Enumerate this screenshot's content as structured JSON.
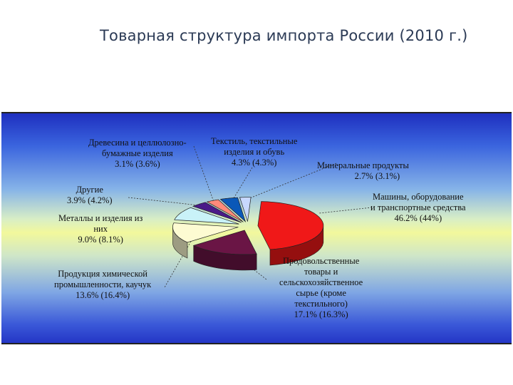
{
  "slide": {
    "title": "Товарная структура импорта России (2010 г.)"
  },
  "chart_data": {
    "type": "pie",
    "title": "Товарная структура импорта России (2010 г.)",
    "unit": "%",
    "slices": [
      {
        "label": "Машины, оборудование и транспортные средства",
        "value": 46.2,
        "comparison": 44,
        "color": "#f01818"
      },
      {
        "label": "Продовольственные товары и сельскохозяйственное сырье (кроме текстильного)",
        "value": 17.1,
        "comparison": 16.3,
        "color": "#6a1545"
      },
      {
        "label": "Продукция химической промышленности, каучук",
        "value": 13.6,
        "comparison": 16.4,
        "color": "#fdfbd2"
      },
      {
        "label": "Металлы и изделия из них",
        "value": 9.0,
        "comparison": 8.1,
        "color": "#c9f2f8"
      },
      {
        "label": "Другие",
        "value": 3.9,
        "comparison": 4.2,
        "color": "#4a1a88"
      },
      {
        "label": "Древесина и целлюлозно-бумажные изделия",
        "value": 3.1,
        "comparison": 3.6,
        "color": "#ff8a7a"
      },
      {
        "label": "Текстиль, текстильные изделия и обувь",
        "value": 4.3,
        "comparison": 4.3,
        "color": "#0a58b8"
      },
      {
        "label": "Минеральные продукты",
        "value": 2.7,
        "comparison": 3.1,
        "color": "#c8d8ff"
      }
    ],
    "labels": {
      "machines": {
        "lines": [
          "Машины, оборудование",
          "и транспортные средства"
        ],
        "values": "46.2%  (44%)"
      },
      "food": {
        "lines": [
          "Продовольственные",
          "товары и",
          "сельскохозяйственное",
          "сырье (кроме",
          "текстильного)"
        ],
        "values": "17.1%  (16.3%)"
      },
      "chemical": {
        "lines": [
          "Продукция химической",
          "промышленности, каучук"
        ],
        "values": "13.6%  (16.4%)"
      },
      "metals": {
        "lines": [
          "Металлы и изделия из",
          "них"
        ],
        "values": "9.0%  (8.1%)"
      },
      "other": {
        "lines": [
          "Другие"
        ],
        "values": "3.9%  (4.2%)"
      },
      "wood": {
        "lines": [
          "Древесина и целлюлозно-",
          "бумажные изделия"
        ],
        "values": "3.1%  (3.6%)"
      },
      "textile": {
        "lines": [
          "Текстиль, текстильные",
          "изделия и обувь"
        ],
        "values": "4.3%  (4.3%)"
      },
      "mineral": {
        "lines": [
          "Минеральные продукты"
        ],
        "values": "2.7%  (3.1%)"
      }
    },
    "legend": "none"
  }
}
